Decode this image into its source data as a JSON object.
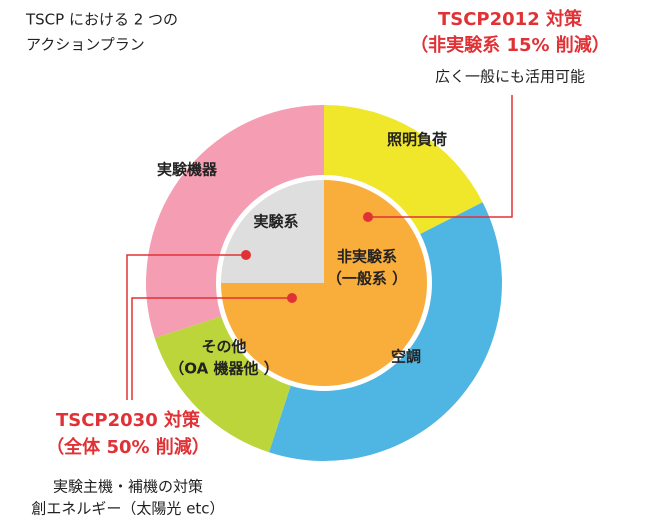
{
  "title": [
    "TSCP における 2 つの",
    "アクションプラン"
  ],
  "plan2012": {
    "title": [
      "TSCP2012 対策",
      "（非実験系 15% 削減）"
    ],
    "note": "広く一般にも活用可能"
  },
  "plan2030": {
    "title": [
      "TSCP2030 対策",
      "（全体 50% 削減）"
    ],
    "notes": [
      "実験主機・補機の対策",
      "創エネルギー（太陽光 etc）"
    ]
  },
  "outer": [
    {
      "label": [
        "照明負荷"
      ],
      "color": "#f0e62a"
    },
    {
      "label": [
        "空調"
      ],
      "color": "#4fb5e2"
    },
    {
      "label": [
        "その他",
        "（OA 機器他 ）"
      ],
      "color": "#bcd53a"
    },
    {
      "label": [
        "実験機器"
      ],
      "color": "#f59db3"
    }
  ],
  "inner": [
    {
      "label": [
        "実験系"
      ],
      "color": "#dedede"
    },
    {
      "label": [
        "非実験系",
        "（一般系 ）"
      ],
      "color": "#f9ad3a"
    }
  ]
}
